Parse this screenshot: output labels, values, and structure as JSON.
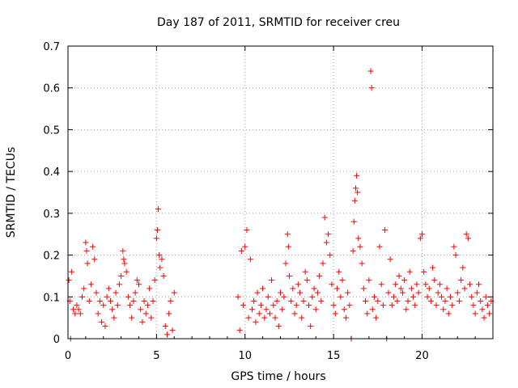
{
  "chart_data": {
    "type": "scatter",
    "title": "Day 187 of 2011, SRMTID for receiver creu",
    "xlabel": "GPS time / hours",
    "ylabel": "SRMTID / TECUs",
    "xlim": [
      0,
      24
    ],
    "ylim": [
      0,
      0.7
    ],
    "xticks": [
      0,
      5,
      10,
      15,
      20
    ],
    "xtick_labels": [
      "0",
      "5",
      "10",
      "15",
      "20"
    ],
    "yticks": [
      0,
      0.1,
      0.2,
      0.3,
      0.4,
      0.5,
      0.6,
      0.7
    ],
    "ytick_labels": [
      "0",
      "0.1",
      "0.2",
      "0.3",
      "0.4",
      "0.5",
      "0.6",
      "0.7"
    ],
    "grid": true,
    "legend": "none",
    "marker": "+",
    "color": "#ff0000",
    "series": [
      {
        "name": "SRMTID",
        "points": [
          [
            0.05,
            0.14
          ],
          [
            0.1,
            0.09
          ],
          [
            0.15,
            0.0
          ],
          [
            0.2,
            0.16
          ],
          [
            0.3,
            0.07
          ],
          [
            0.4,
            0.06
          ],
          [
            0.5,
            0.08
          ],
          [
            0.6,
            0.07
          ],
          [
            0.7,
            0.06
          ],
          [
            0.8,
            0.1
          ],
          [
            0.9,
            0.12
          ],
          [
            1.0,
            0.23
          ],
          [
            1.05,
            0.21
          ],
          [
            1.1,
            0.18
          ],
          [
            1.2,
            0.09
          ],
          [
            1.3,
            0.13
          ],
          [
            1.4,
            0.22
          ],
          [
            1.5,
            0.19
          ],
          [
            1.6,
            0.11
          ],
          [
            1.7,
            0.06
          ],
          [
            1.8,
            0.09
          ],
          [
            1.9,
            0.04
          ],
          [
            2.0,
            0.08
          ],
          [
            2.1,
            0.03
          ],
          [
            2.2,
            0.1
          ],
          [
            2.3,
            0.12
          ],
          [
            2.4,
            0.09
          ],
          [
            2.5,
            0.07
          ],
          [
            2.6,
            0.05
          ],
          [
            2.7,
            0.11
          ],
          [
            2.8,
            0.08
          ],
          [
            2.9,
            0.13
          ],
          [
            3.0,
            0.15
          ],
          [
            3.1,
            0.21
          ],
          [
            3.15,
            0.19
          ],
          [
            3.2,
            0.18
          ],
          [
            3.3,
            0.16
          ],
          [
            3.4,
            0.1
          ],
          [
            3.5,
            0.08
          ],
          [
            3.6,
            0.05
          ],
          [
            3.7,
            0.09
          ],
          [
            3.8,
            0.11
          ],
          [
            3.9,
            0.14
          ],
          [
            4.0,
            0.13
          ],
          [
            4.1,
            0.07
          ],
          [
            4.2,
            0.04
          ],
          [
            4.3,
            0.09
          ],
          [
            4.4,
            0.06
          ],
          [
            4.5,
            0.08
          ],
          [
            4.6,
            0.12
          ],
          [
            4.7,
            0.05
          ],
          [
            4.8,
            0.09
          ],
          [
            4.9,
            0.14
          ],
          [
            5.0,
            0.24
          ],
          [
            5.05,
            0.26
          ],
          [
            5.1,
            0.31
          ],
          [
            5.15,
            0.2
          ],
          [
            5.2,
            0.17
          ],
          [
            5.3,
            0.19
          ],
          [
            5.4,
            0.15
          ],
          [
            5.5,
            0.03
          ],
          [
            5.6,
            0.01
          ],
          [
            5.7,
            0.06
          ],
          [
            5.8,
            0.09
          ],
          [
            5.9,
            0.02
          ],
          [
            6.0,
            0.11
          ],
          [
            9.6,
            0.1
          ],
          [
            9.7,
            0.02
          ],
          [
            9.8,
            0.21
          ],
          [
            9.9,
            0.08
          ],
          [
            10.0,
            0.22
          ],
          [
            10.1,
            0.26
          ],
          [
            10.2,
            0.05
          ],
          [
            10.3,
            0.19
          ],
          [
            10.4,
            0.07
          ],
          [
            10.5,
            0.09
          ],
          [
            10.6,
            0.04
          ],
          [
            10.7,
            0.11
          ],
          [
            10.8,
            0.06
          ],
          [
            10.9,
            0.08
          ],
          [
            11.0,
            0.12
          ],
          [
            11.1,
            0.05
          ],
          [
            11.2,
            0.07
          ],
          [
            11.3,
            0.1
          ],
          [
            11.4,
            0.06
          ],
          [
            11.5,
            0.14
          ],
          [
            11.6,
            0.08
          ],
          [
            11.7,
            0.05
          ],
          [
            11.8,
            0.09
          ],
          [
            11.9,
            0.03
          ],
          [
            12.0,
            0.11
          ],
          [
            12.1,
            0.07
          ],
          [
            12.2,
            0.1
          ],
          [
            12.3,
            0.18
          ],
          [
            12.4,
            0.25
          ],
          [
            12.45,
            0.22
          ],
          [
            12.5,
            0.15
          ],
          [
            12.6,
            0.09
          ],
          [
            12.7,
            0.12
          ],
          [
            12.8,
            0.06
          ],
          [
            12.9,
            0.08
          ],
          [
            13.0,
            0.13
          ],
          [
            13.1,
            0.11
          ],
          [
            13.2,
            0.05
          ],
          [
            13.3,
            0.09
          ],
          [
            13.4,
            0.16
          ],
          [
            13.5,
            0.14
          ],
          [
            13.6,
            0.08
          ],
          [
            13.7,
            0.03
          ],
          [
            13.8,
            0.1
          ],
          [
            13.9,
            0.12
          ],
          [
            14.0,
            0.07
          ],
          [
            14.1,
            0.11
          ],
          [
            14.2,
            0.15
          ],
          [
            14.3,
            0.09
          ],
          [
            14.4,
            0.18
          ],
          [
            14.5,
            0.29
          ],
          [
            14.6,
            0.23
          ],
          [
            14.7,
            0.25
          ],
          [
            14.8,
            0.2
          ],
          [
            14.9,
            0.13
          ],
          [
            15.0,
            0.08
          ],
          [
            15.1,
            0.06
          ],
          [
            15.2,
            0.12
          ],
          [
            15.3,
            0.16
          ],
          [
            15.4,
            0.1
          ],
          [
            15.5,
            0.14
          ],
          [
            15.6,
            0.07
          ],
          [
            15.7,
            0.05
          ],
          [
            15.8,
            0.11
          ],
          [
            15.9,
            0.08
          ],
          [
            16.0,
            0.0
          ],
          [
            16.1,
            0.21
          ],
          [
            16.15,
            0.28
          ],
          [
            16.2,
            0.33
          ],
          [
            16.25,
            0.36
          ],
          [
            16.3,
            0.39
          ],
          [
            16.35,
            0.35
          ],
          [
            16.4,
            0.24
          ],
          [
            16.5,
            0.22
          ],
          [
            16.6,
            0.18
          ],
          [
            16.7,
            0.12
          ],
          [
            16.8,
            0.09
          ],
          [
            16.9,
            0.06
          ],
          [
            17.0,
            0.14
          ],
          [
            17.1,
            0.64
          ],
          [
            17.15,
            0.6
          ],
          [
            17.2,
            0.07
          ],
          [
            17.3,
            0.1
          ],
          [
            17.4,
            0.05
          ],
          [
            17.5,
            0.09
          ],
          [
            17.6,
            0.22
          ],
          [
            17.7,
            0.13
          ],
          [
            17.8,
            0.08
          ],
          [
            17.9,
            0.26
          ],
          [
            18.0,
            0.0
          ],
          [
            18.1,
            0.11
          ],
          [
            18.2,
            0.19
          ],
          [
            18.3,
            0.08
          ],
          [
            18.4,
            0.1
          ],
          [
            18.5,
            0.13
          ],
          [
            18.6,
            0.09
          ],
          [
            18.7,
            0.15
          ],
          [
            18.8,
            0.12
          ],
          [
            18.9,
            0.11
          ],
          [
            19.0,
            0.14
          ],
          [
            19.1,
            0.07
          ],
          [
            19.2,
            0.09
          ],
          [
            19.3,
            0.16
          ],
          [
            19.4,
            0.12
          ],
          [
            19.5,
            0.1
          ],
          [
            19.6,
            0.08
          ],
          [
            19.7,
            0.13
          ],
          [
            19.8,
            0.11
          ],
          [
            19.9,
            0.24
          ],
          [
            20.0,
            0.25
          ],
          [
            20.1,
            0.16
          ],
          [
            20.2,
            0.13
          ],
          [
            20.3,
            0.1
          ],
          [
            20.4,
            0.12
          ],
          [
            20.5,
            0.09
          ],
          [
            20.6,
            0.17
          ],
          [
            20.7,
            0.14
          ],
          [
            20.8,
            0.08
          ],
          [
            20.9,
            0.11
          ],
          [
            21.0,
            0.13
          ],
          [
            21.1,
            0.1
          ],
          [
            21.2,
            0.07
          ],
          [
            21.3,
            0.09
          ],
          [
            21.4,
            0.12
          ],
          [
            21.5,
            0.06
          ],
          [
            21.6,
            0.1
          ],
          [
            21.7,
            0.08
          ],
          [
            21.8,
            0.22
          ],
          [
            21.9,
            0.2
          ],
          [
            22.0,
            0.11
          ],
          [
            22.1,
            0.09
          ],
          [
            22.2,
            0.14
          ],
          [
            22.3,
            0.17
          ],
          [
            22.4,
            0.12
          ],
          [
            22.5,
            0.25
          ],
          [
            22.6,
            0.24
          ],
          [
            22.7,
            0.13
          ],
          [
            22.8,
            0.1
          ],
          [
            22.9,
            0.08
          ],
          [
            23.0,
            0.06
          ],
          [
            23.1,
            0.11
          ],
          [
            23.2,
            0.13
          ],
          [
            23.3,
            0.09
          ],
          [
            23.4,
            0.07
          ],
          [
            23.5,
            0.05
          ],
          [
            23.6,
            0.1
          ],
          [
            23.7,
            0.08
          ],
          [
            23.8,
            0.06
          ],
          [
            23.9,
            0.09
          ]
        ]
      }
    ]
  }
}
